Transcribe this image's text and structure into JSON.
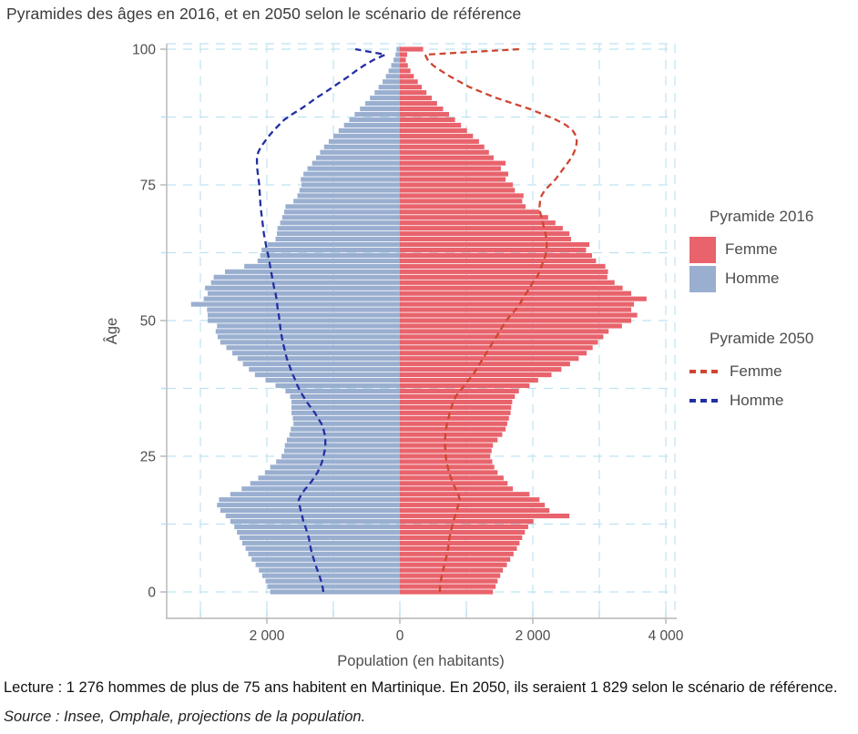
{
  "title": "Pyramides des âges en 2016, et en 2050 selon le scénario de référence",
  "caption": {
    "lecture": "Lecture : 1 276 hommes de plus de 75 ans habitent en Martinique. En 2050, ils seraient 1 829 selon le scénario de référence.",
    "source": "Source : Insee, Omphale, projections de la population."
  },
  "colors": {
    "femme_2016": "#E8636C",
    "homme_2016": "#9AAFD0",
    "femme_2050": "#CE4631",
    "homme_2050": "#232FA3",
    "grid": "#BEE3F2",
    "axis": "#B5B5B5",
    "tick_text": "#4d4d4d"
  },
  "legend": {
    "groups": [
      {
        "title": "Pyramide 2016",
        "items": [
          {
            "label": "Femme",
            "swatch": "rect",
            "color": "#E8636C"
          },
          {
            "label": "Homme",
            "swatch": "rect",
            "color": "#9AAFD0"
          }
        ]
      },
      {
        "title": "Pyramide 2050",
        "items": [
          {
            "label": "Femme",
            "swatch": "dash",
            "color": "#CE4631"
          },
          {
            "label": "Homme",
            "swatch": "dash",
            "color": "#232FA3"
          }
        ]
      }
    ]
  },
  "chart_data": {
    "type": "bar",
    "variant": "population-pyramid",
    "title": "Pyramides des âges en 2016, et en 2050 selon le scénario de référence",
    "xlabel": "Population (en habitants)",
    "ylabel": "Âge",
    "x_axis": {
      "major_ticks": [
        -2000,
        0,
        2000,
        4000
      ],
      "major_tick_labels": [
        "2 000",
        "0",
        "2 000",
        "4 000"
      ],
      "minor_tick_step": 1000,
      "range": [
        -3500,
        4150
      ],
      "note": "men plotted to the left of 0, women to the right"
    },
    "y_axis": {
      "ticks": [
        0,
        25,
        50,
        75,
        100
      ],
      "tick_labels": [
        "0",
        "25",
        "50",
        "75",
        "100"
      ],
      "minor_grid_step": 12.5,
      "range": [
        0,
        101
      ]
    },
    "grid": "dashed light blue, vertical every 1000 inhabitants, horizontal every 12.5 years",
    "legend_position": "right",
    "ages": "0 to 100 (one bar per year of age, 100 = 100 and over)",
    "series": [
      {
        "name": "Femme Pyramide 2016",
        "style": "bar",
        "side": "right",
        "color": "#E8636C",
        "values": [
          1400,
          1440,
          1470,
          1510,
          1550,
          1610,
          1660,
          1710,
          1760,
          1800,
          1840,
          1880,
          1930,
          2010,
          2550,
          2250,
          2180,
          2100,
          1950,
          1700,
          1620,
          1560,
          1470,
          1420,
          1390,
          1360,
          1380,
          1400,
          1470,
          1540,
          1590,
          1615,
          1640,
          1665,
          1675,
          1690,
          1730,
          1790,
          1950,
          2080,
          2280,
          2430,
          2560,
          2690,
          2810,
          2900,
          2980,
          3060,
          3140,
          3340,
          3480,
          3570,
          3480,
          3520,
          3710,
          3480,
          3350,
          3230,
          3120,
          3130,
          3090,
          2950,
          2890,
          2800,
          2850,
          2575,
          2550,
          2450,
          2340,
          2230,
          2100,
          1890,
          1840,
          1860,
          1730,
          1700,
          1590,
          1630,
          1520,
          1590,
          1410,
          1340,
          1270,
          1190,
          1100,
          1010,
          920,
          830,
          740,
          650,
          560,
          480,
          400,
          330,
          270,
          210,
          160,
          120,
          90,
          110,
          350
        ]
      },
      {
        "name": "Homme Pyramide 2016",
        "style": "bar",
        "side": "left",
        "color": "#9AAFD0",
        "values": [
          1950,
          1990,
          2020,
          2070,
          2120,
          2170,
          2230,
          2280,
          2320,
          2370,
          2410,
          2450,
          2490,
          2550,
          2620,
          2700,
          2750,
          2720,
          2550,
          2380,
          2250,
          2130,
          2030,
          1950,
          1860,
          1780,
          1740,
          1730,
          1700,
          1660,
          1640,
          1600,
          1610,
          1630,
          1630,
          1630,
          1650,
          1720,
          1870,
          2020,
          2180,
          2270,
          2360,
          2440,
          2520,
          2610,
          2700,
          2740,
          2770,
          2750,
          2890,
          2890,
          2900,
          3140,
          2950,
          2890,
          2930,
          2840,
          2800,
          2630,
          2340,
          2140,
          2100,
          2080,
          1990,
          1870,
          1850,
          1840,
          1800,
          1770,
          1740,
          1720,
          1600,
          1540,
          1510,
          1480,
          1490,
          1450,
          1390,
          1320,
          1260,
          1200,
          1140,
          1070,
          1000,
          920,
          840,
          760,
          680,
          600,
          520,
          450,
          380,
          320,
          260,
          210,
          170,
          130,
          95,
          65,
          50
        ]
      },
      {
        "name": "Femme Pyramide 2050",
        "style": "dashed-line",
        "side": "right",
        "color": "#CE4631",
        "values": [
          600,
          605,
          615,
          630,
          650,
          670,
          690,
          710,
          725,
          735,
          745,
          765,
          785,
          805,
          830,
          855,
          880,
          900,
          880,
          840,
          800,
          770,
          740,
          720,
          700,
          690,
          685,
          680,
          680,
          685,
          695,
          710,
          730,
          750,
          775,
          800,
          840,
          900,
          970,
          1030,
          1100,
          1150,
          1200,
          1250,
          1300,
          1350,
          1400,
          1450,
          1500,
          1550,
          1600,
          1670,
          1740,
          1800,
          1850,
          1900,
          1950,
          2000,
          2060,
          2100,
          2130,
          2160,
          2190,
          2205,
          2210,
          2205,
          2190,
          2170,
          2150,
          2130,
          2110,
          2100,
          2110,
          2130,
          2180,
          2260,
          2340,
          2400,
          2460,
          2520,
          2580,
          2620,
          2650,
          2660,
          2650,
          2600,
          2500,
          2350,
          2150,
          1950,
          1700,
          1450,
          1250,
          1050,
          900,
          750,
          620,
          500,
          420,
          380,
          1800
        ]
      },
      {
        "name": "Homme Pyramide 2050",
        "style": "dashed-line",
        "side": "left",
        "color": "#232FA3",
        "values": [
          1150,
          1165,
          1185,
          1210,
          1240,
          1270,
          1295,
          1320,
          1340,
          1355,
          1370,
          1395,
          1420,
          1450,
          1470,
          1490,
          1510,
          1520,
          1480,
          1420,
          1350,
          1290,
          1240,
          1200,
          1170,
          1150,
          1130,
          1120,
          1120,
          1130,
          1150,
          1180,
          1230,
          1280,
          1340,
          1400,
          1450,
          1500,
          1540,
          1570,
          1610,
          1640,
          1670,
          1700,
          1720,
          1740,
          1760,
          1775,
          1790,
          1800,
          1810,
          1820,
          1835,
          1845,
          1855,
          1870,
          1890,
          1905,
          1920,
          1935,
          1950,
          1965,
          1980,
          2000,
          2015,
          2030,
          2045,
          2055,
          2065,
          2075,
          2085,
          2095,
          2100,
          2105,
          2110,
          2115,
          2125,
          2135,
          2145,
          2150,
          2150,
          2130,
          2090,
          2030,
          1970,
          1900,
          1820,
          1740,
          1620,
          1490,
          1370,
          1260,
          1130,
          1010,
          890,
          770,
          660,
          540,
          400,
          220,
          670
        ]
      }
    ]
  }
}
